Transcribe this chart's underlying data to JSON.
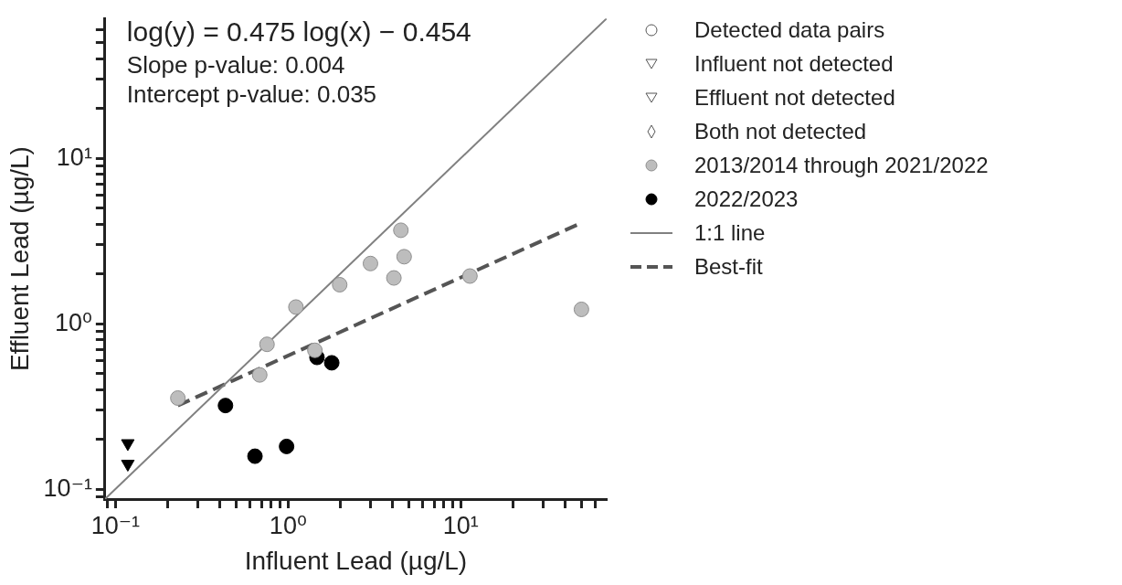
{
  "chart_data": {
    "type": "scatter",
    "xlabel": "Influent Lead (µg/L)",
    "ylabel": "Effluent Lead (µg/L)",
    "log": "xy",
    "grid": false,
    "legend": "right",
    "xlim": [
      0.087,
      70
    ],
    "ylim": [
      0.087,
      70
    ],
    "xticks": [
      {
        "value": 0.09,
        "label": null
      },
      {
        "value": 0.1,
        "label": "10⁻¹"
      },
      {
        "value": 0.2,
        "label": null
      },
      {
        "value": 0.3,
        "label": null
      },
      {
        "value": 0.4,
        "label": null
      },
      {
        "value": 0.5,
        "label": null
      },
      {
        "value": 0.6,
        "label": null
      },
      {
        "value": 0.7,
        "label": null
      },
      {
        "value": 0.8,
        "label": null
      },
      {
        "value": 0.9,
        "label": null
      },
      {
        "value": 1,
        "label": "10⁰"
      },
      {
        "value": 2,
        "label": null
      },
      {
        "value": 3,
        "label": null
      },
      {
        "value": 4,
        "label": null
      },
      {
        "value": 5,
        "label": null
      },
      {
        "value": 6,
        "label": null
      },
      {
        "value": 7,
        "label": null
      },
      {
        "value": 8,
        "label": null
      },
      {
        "value": 9,
        "label": null
      },
      {
        "value": 10,
        "label": "10¹"
      },
      {
        "value": 20,
        "label": null
      },
      {
        "value": 30,
        "label": null
      },
      {
        "value": 40,
        "label": null
      },
      {
        "value": 50,
        "label": null
      },
      {
        "value": 60,
        "label": null
      }
    ],
    "yticks": [
      {
        "value": 0.09,
        "label": null
      },
      {
        "value": 0.1,
        "label": "10⁻¹"
      },
      {
        "value": 0.2,
        "label": null
      },
      {
        "value": 0.3,
        "label": null
      },
      {
        "value": 0.4,
        "label": null
      },
      {
        "value": 0.5,
        "label": null
      },
      {
        "value": 0.6,
        "label": null
      },
      {
        "value": 0.7,
        "label": null
      },
      {
        "value": 0.8,
        "label": null
      },
      {
        "value": 0.9,
        "label": null
      },
      {
        "value": 1,
        "label": "10⁰"
      },
      {
        "value": 2,
        "label": null
      },
      {
        "value": 3,
        "label": null
      },
      {
        "value": 4,
        "label": null
      },
      {
        "value": 5,
        "label": null
      },
      {
        "value": 6,
        "label": null
      },
      {
        "value": 7,
        "label": null
      },
      {
        "value": 8,
        "label": null
      },
      {
        "value": 9,
        "label": null
      },
      {
        "value": 10,
        "label": "10¹"
      },
      {
        "value": 20,
        "label": null
      },
      {
        "value": 30,
        "label": null
      },
      {
        "value": 40,
        "label": null
      },
      {
        "value": 50,
        "label": null
      },
      {
        "value": 60,
        "label": null
      }
    ],
    "annotations": [
      "log(y) = 0.475 log(x) − 0.454",
      "Slope p-value: 0.004",
      "Intercept p-value: 0.035"
    ],
    "series": [
      {
        "name": "Detected data pairs",
        "color": "#ffffff",
        "marker": "circle"
      },
      {
        "name": "Influent not detected",
        "color": "#ffffff",
        "marker": "triangle"
      },
      {
        "name": "Effluent not detected",
        "color": "#ffffff",
        "marker": "triangle"
      },
      {
        "name": "Both not detected",
        "color": "#ffffff",
        "marker": "diamond"
      },
      {
        "name": "2013/2014 through 2021/2022",
        "color": "#bdbdbd",
        "marker": "circle",
        "x": [
          0.23,
          0.685,
          0.755,
          1.11,
          1.43,
          1.99,
          3.0,
          4.1,
          4.5,
          4.7,
          11.3,
          50
        ],
        "values": [
          0.355,
          0.49,
          0.75,
          1.26,
          0.69,
          1.72,
          2.31,
          1.89,
          3.67,
          2.54,
          1.94,
          1.22
        ]
      },
      {
        "name": "2022/2023",
        "color": "#000000",
        "marker": "circle",
        "x": [
          0.434,
          0.643,
          0.98,
          1.47,
          1.79
        ],
        "values": [
          0.32,
          0.158,
          0.181,
          0.625,
          0.58
        ]
      },
      {
        "color": "#000000",
        "marker": "triangle",
        "x": [
          0.118,
          0.118
        ],
        "values": [
          0.189,
          0.142
        ]
      },
      {
        "name": "1:1 line",
        "type": "line",
        "color": "#808080",
        "marker": "none",
        "line_style": "solid",
        "x": [
          0.087,
          70
        ],
        "values": [
          0.087,
          70
        ]
      },
      {
        "name": "Best-fit",
        "type": "line",
        "color": "#555555",
        "marker": "none",
        "line_style": "dashed",
        "x": [
          0.23,
          47
        ],
        "values": [
          0.32,
          3.95
        ]
      }
    ]
  }
}
